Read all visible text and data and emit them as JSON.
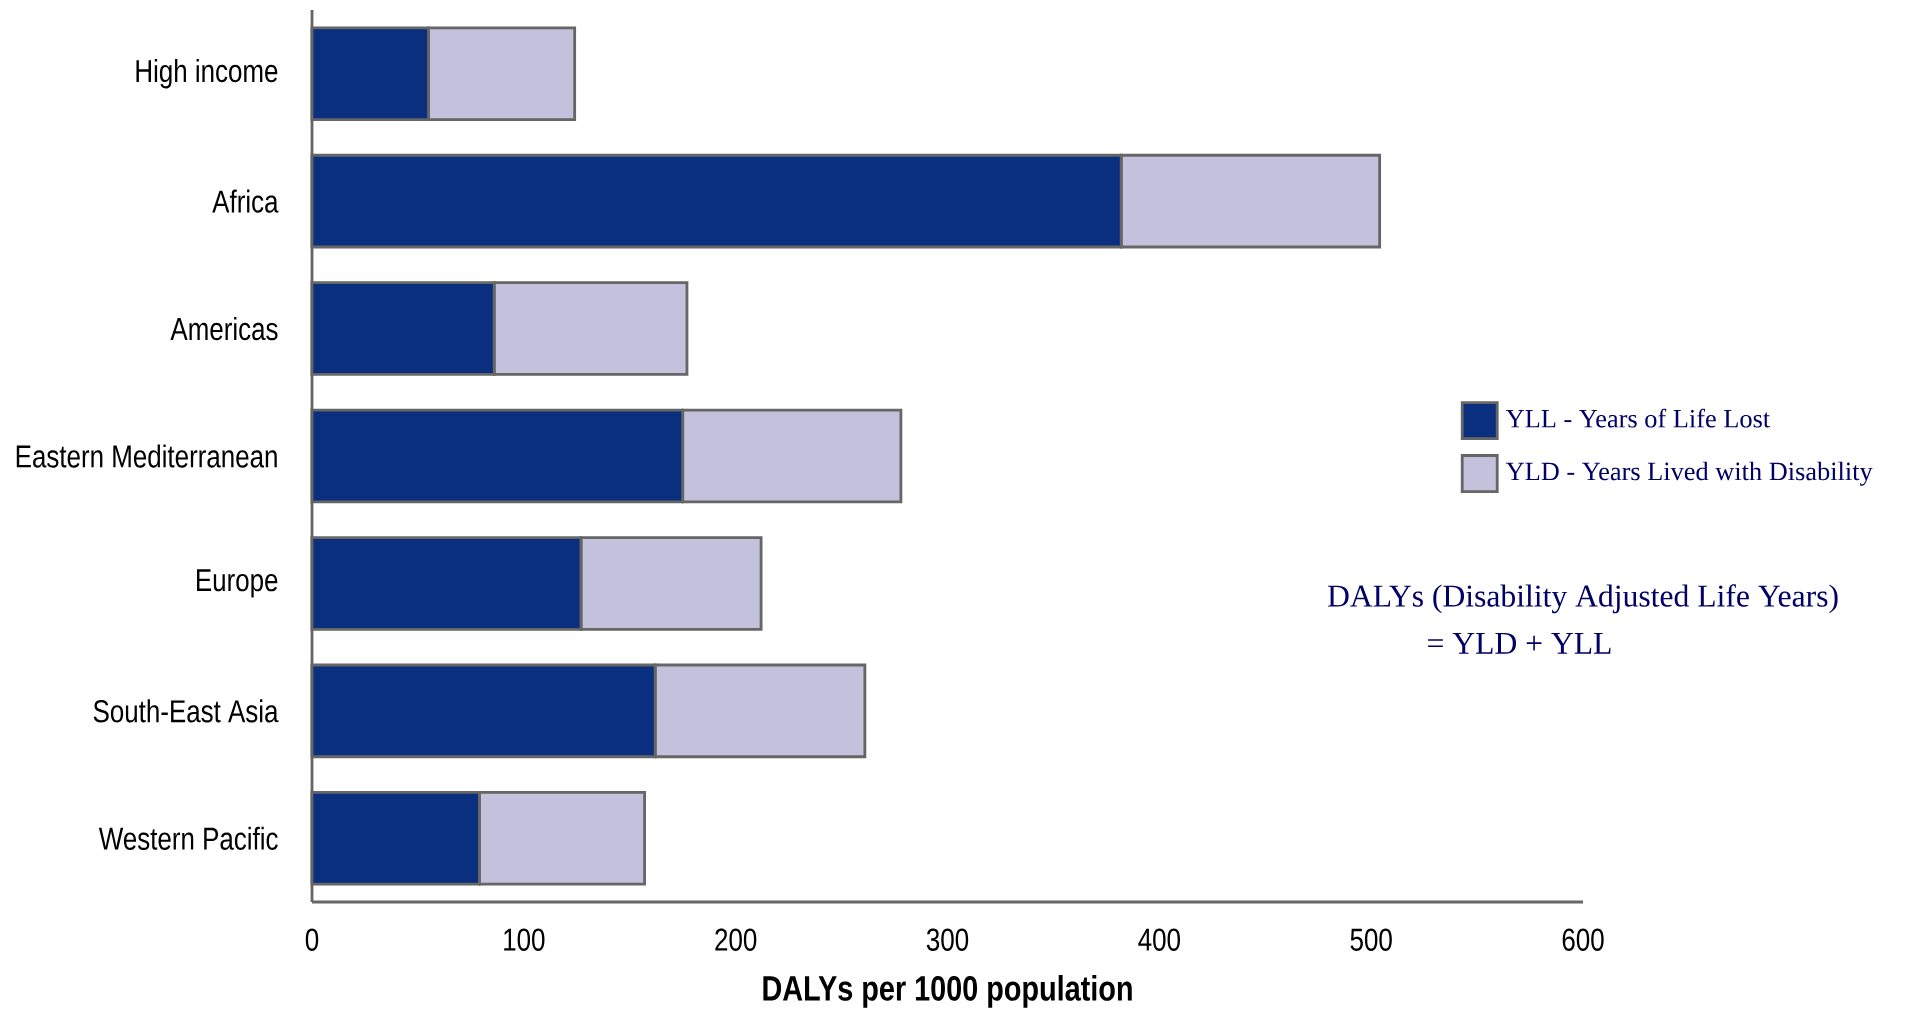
{
  "chart_data": {
    "type": "bar",
    "orientation": "horizontal",
    "stacked": true,
    "categories": [
      "High income",
      "Africa",
      "Americas",
      "Eastern Mediterranean",
      "Europe",
      "South-East Asia",
      "Western Pacific"
    ],
    "series": [
      {
        "name": "YLL - Years of Life Lost",
        "color": "#0a2f7f",
        "values": [
          55,
          382,
          86,
          175,
          127,
          162,
          79
        ]
      },
      {
        "name": "YLD - Years Lived with Disability",
        "color": "#c3c1dc",
        "values": [
          69,
          122,
          91,
          103,
          85,
          99,
          78
        ]
      }
    ],
    "xlabel": "DALYs per 1000 population",
    "xlim": [
      0,
      600
    ],
    "xticks": [
      0,
      100,
      200,
      300,
      400,
      500,
      600
    ],
    "legend": "right",
    "annotations": [
      "DALYs (Disability Adjusted Life Years)",
      "= YLD + YLL"
    ]
  }
}
